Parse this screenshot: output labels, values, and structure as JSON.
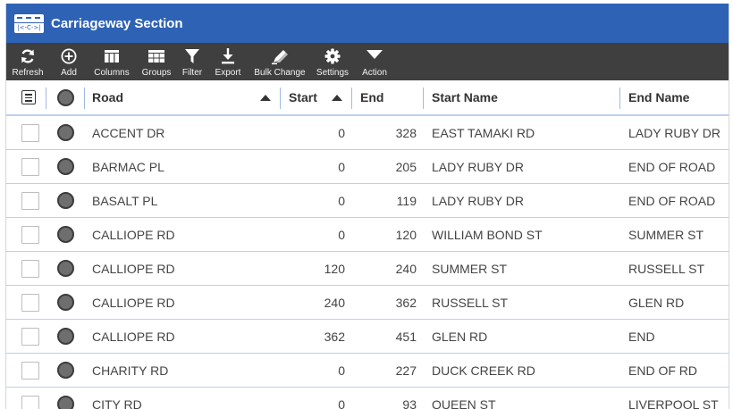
{
  "app": {
    "title": "Carriageway Section",
    "logo_mark": "|<-C->|"
  },
  "toolbar": {
    "items": [
      {
        "label": "Refresh",
        "icon": "refresh-icon"
      },
      {
        "label": "Add",
        "icon": "add-circle-icon"
      },
      {
        "label": "Columns",
        "icon": "columns-icon"
      },
      {
        "label": "Groups",
        "icon": "groups-icon"
      },
      {
        "label": "Filter",
        "icon": "filter-icon"
      },
      {
        "label": "Export",
        "icon": "export-icon"
      },
      {
        "label": "Bulk Change",
        "icon": "bulk-change-icon"
      },
      {
        "label": "Settings",
        "icon": "gear-icon"
      },
      {
        "label": "Action",
        "icon": "caret-down-icon"
      }
    ]
  },
  "grid": {
    "columns": {
      "road": "Road",
      "start": "Start",
      "end": "End",
      "start_name": "Start Name",
      "end_name": "End Name"
    },
    "rows": [
      {
        "road": "ACCENT DR",
        "start": "0",
        "end": "328",
        "start_name": "EAST TAMAKI RD",
        "end_name": "LADY RUBY DR"
      },
      {
        "road": "BARMAC PL",
        "start": "0",
        "end": "205",
        "start_name": "LADY RUBY DR",
        "end_name": "END OF ROAD"
      },
      {
        "road": "BASALT PL",
        "start": "0",
        "end": "119",
        "start_name": "LADY RUBY DR",
        "end_name": "END OF ROAD"
      },
      {
        "road": "CALLIOPE RD",
        "start": "0",
        "end": "120",
        "start_name": "WILLIAM BOND ST",
        "end_name": "SUMMER ST"
      },
      {
        "road": "CALLIOPE RD",
        "start": "120",
        "end": "240",
        "start_name": "SUMMER ST",
        "end_name": "RUSSELL ST"
      },
      {
        "road": "CALLIOPE RD",
        "start": "240",
        "end": "362",
        "start_name": "RUSSELL ST",
        "end_name": "GLEN RD"
      },
      {
        "road": "CALLIOPE RD",
        "start": "362",
        "end": "451",
        "start_name": "GLEN RD",
        "end_name": "END"
      },
      {
        "road": "CHARITY RD",
        "start": "0",
        "end": "227",
        "start_name": "DUCK CREEK RD",
        "end_name": "END OF RD"
      },
      {
        "road": "CITY RD",
        "start": "0",
        "end": "93",
        "start_name": "QUEEN ST",
        "end_name": "LIVERPOOL ST"
      }
    ]
  },
  "colors": {
    "titlebar": "#2e62b5",
    "toolbar": "#3f3f3f",
    "row_border": "#bcd0ef"
  }
}
